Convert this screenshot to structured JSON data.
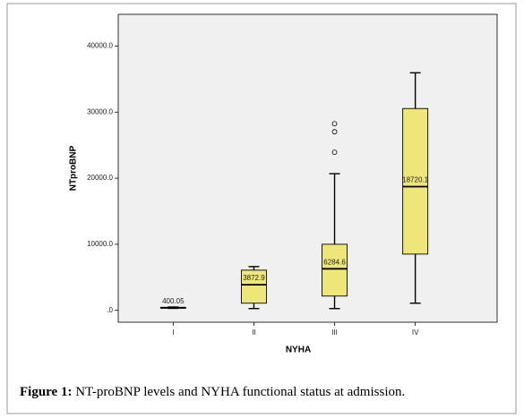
{
  "chart_data": {
    "type": "box",
    "x_label": "NYHA",
    "y_label": "NTproBNP",
    "categories": [
      "I",
      "II",
      "III",
      "IV"
    ],
    "boxes": [
      {
        "min": 300,
        "q1": 350,
        "median": 400.05,
        "q3": 450,
        "max": 500,
        "outliers": []
      },
      {
        "min": 270,
        "q1": 1080,
        "median": 3872.9,
        "q3": 6080,
        "max": 6620,
        "outliers": []
      },
      {
        "min": 270,
        "q1": 2160,
        "median": 6284.6,
        "q3": 10000,
        "max": 20680,
        "outliers": [
          23920,
          27030,
          28240
        ]
      },
      {
        "min": 1080,
        "q1": 8510,
        "median": 18720.1,
        "q3": 30540,
        "max": 35950,
        "outliers": []
      }
    ],
    "color": "#efe67a",
    "ylim": [
      -1800,
      44800
    ],
    "yticks": [
      {
        "value": 0,
        "label": ".0"
      },
      {
        "value": 10000,
        "label": "10000.0"
      },
      {
        "value": 20000,
        "label": "20000.0"
      },
      {
        "value": 30000,
        "label": "30000.0"
      },
      {
        "value": 40000,
        "label": "40000.0"
      }
    ]
  },
  "caption": {
    "label": "Figure 1:",
    "text": "NT-proBNP levels and NYHA functional status at admission."
  }
}
